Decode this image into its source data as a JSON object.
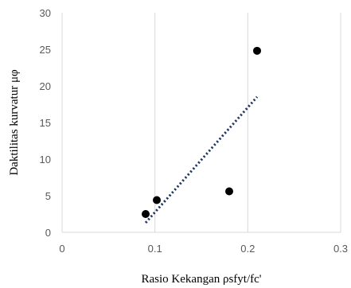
{
  "chart_data": {
    "type": "scatter",
    "xlabel": "Rasio Kekangan ρsfyt/fc'",
    "ylabel": "Daktilitas kurvatur μφ",
    "xlim": [
      0,
      0.3
    ],
    "ylim": [
      0,
      30
    ],
    "x_ticks": [
      "0",
      "0.1",
      "0.2",
      "0.3"
    ],
    "y_ticks": [
      "0",
      "5",
      "10",
      "15",
      "20",
      "25",
      "30"
    ],
    "grid": "vertical",
    "points": [
      {
        "x": 0.09,
        "y": 2.5
      },
      {
        "x": 0.102,
        "y": 4.4
      },
      {
        "x": 0.18,
        "y": 5.6
      },
      {
        "x": 0.21,
        "y": 24.8
      }
    ],
    "trendline": {
      "style": "dotted",
      "from": {
        "x": 0.09,
        "y": 1.3
      },
      "to": {
        "x": 0.21,
        "y": 18.5
      }
    },
    "colors": {
      "marker": "#000000",
      "trendline": "#1f3864",
      "grid": "#d9d9d9"
    }
  }
}
